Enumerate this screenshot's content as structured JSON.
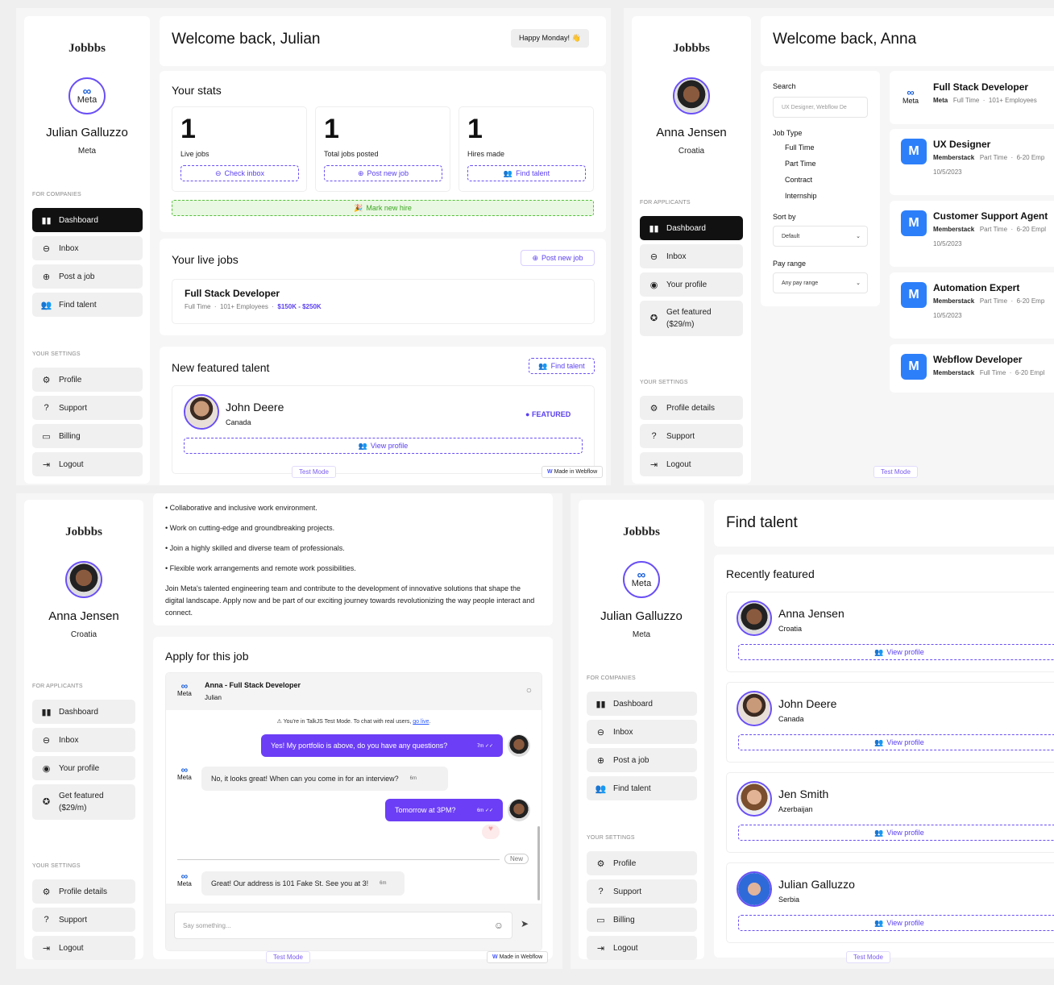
{
  "brand": "Jobbbs",
  "common": {
    "test_mode": "Test Mode",
    "made_in_webflow": "Made in Webflow",
    "for_companies": "FOR COMPANIES",
    "for_applicants": "FOR APPLICANTS",
    "your_settings": "YOUR SETTINGS",
    "meta_logo_text": "Meta"
  },
  "panel1": {
    "user_name": "Julian Galluzzo",
    "user_company": "Meta",
    "nav": [
      "Dashboard",
      "Inbox",
      "Post a job",
      "Find talent"
    ],
    "settings": [
      "Profile",
      "Support",
      "Billing",
      "Logout"
    ],
    "welcome": "Welcome back, Julian",
    "day_badge": "Happy Monday! 👋",
    "stats_title": "Your stats",
    "stats": [
      {
        "value": "1",
        "label": "Live jobs",
        "action": "Check inbox"
      },
      {
        "value": "1",
        "label": "Total jobs posted",
        "action": "Post new job"
      },
      {
        "value": "1",
        "label": "Hires made",
        "action": "Find talent"
      }
    ],
    "mark_hire": "Mark new hire",
    "live_jobs_title": "Your live jobs",
    "post_new_job": "Post new job",
    "job": {
      "title": "Full Stack Developer",
      "type": "Full Time",
      "size": "101+ Employees",
      "salary": "$150K - $250K"
    },
    "featured_title": "New featured talent",
    "find_talent": "Find talent",
    "talent": {
      "name": "John Deere",
      "location": "Canada",
      "badge": "FEATURED",
      "view": "View profile"
    }
  },
  "panel2": {
    "user_name": "Anna Jensen",
    "user_country": "Croatia",
    "nav": [
      "Dashboard",
      "Inbox",
      "Your profile"
    ],
    "get_featured": [
      "Get featured",
      "($29/m)"
    ],
    "settings": [
      "Profile details",
      "Support",
      "Logout"
    ],
    "welcome": "Welcome back, Anna",
    "filters": {
      "search_label": "Search",
      "search_placeholder": "UX Designer, Webflow De",
      "job_type_label": "Job Type",
      "job_types": [
        "Full Time",
        "Part Time",
        "Contract",
        "Internship"
      ],
      "sort_label": "Sort by",
      "sort_value": "Default",
      "pay_label": "Pay range",
      "pay_value": "Any pay range"
    },
    "jobs": [
      {
        "title": "Full Stack Developer",
        "company": "Meta",
        "type": "Full Time",
        "size": "101+ Employees",
        "date": ""
      },
      {
        "title": "UX Designer",
        "company": "Memberstack",
        "type": "Part Time",
        "size": "6-20 Emp",
        "date": "10/5/2023"
      },
      {
        "title": "Customer Support Agent",
        "company": "Memberstack",
        "type": "Part Time",
        "size": "6-20 Empl",
        "date": "10/5/2023"
      },
      {
        "title": "Automation Expert",
        "company": "Memberstack",
        "type": "Part Time",
        "size": "6-20 Emp",
        "date": "10/5/2023"
      },
      {
        "title": "Webflow Developer",
        "company": "Memberstack",
        "type": "Full Time",
        "size": "6-20 Empl",
        "date": ""
      }
    ]
  },
  "panel3": {
    "user_name": "Anna Jensen",
    "user_country": "Croatia",
    "nav": [
      "Dashboard",
      "Inbox",
      "Your profile"
    ],
    "get_featured": [
      "Get featured",
      "($29/m)"
    ],
    "settings": [
      "Profile details",
      "Support",
      "Logout"
    ],
    "bullets": [
      "• Collaborative and inclusive work environment.",
      "• Work on cutting-edge and groundbreaking projects.",
      "• Join a highly skilled and diverse team of professionals.",
      "• Flexible work arrangements and remote work possibilities."
    ],
    "paragraph": "Join Meta's talented engineering team and contribute to the development of innovative solutions that shape the digital landscape. Apply now and be part of our exciting journey towards revolutionizing the way people interact and connect.",
    "apply_title": "Apply for this job",
    "chat": {
      "header_title": "Anna - Full Stack Developer",
      "header_sub": "Julian",
      "notice": "You're in TalkJS Test Mode. To chat with real users,",
      "notice_link": "go live",
      "messages": [
        {
          "text": "Yes! My portfolio is above, do you have any questions?",
          "time": "7m ✓✓"
        },
        {
          "text": "No, it looks great! When can you come in for an interview?",
          "time": "6m"
        },
        {
          "text": "Tomorrow at 3PM?",
          "time": "6m ✓✓"
        },
        {
          "text": "Great! Our address is 101 Fake St. See you at 3!",
          "time": "6m"
        }
      ],
      "new_label": "New",
      "placeholder": "Say something..."
    }
  },
  "panel4": {
    "user_name": "Julian Galluzzo",
    "user_company": "Meta",
    "nav": [
      "Dashboard",
      "Inbox",
      "Post a job",
      "Find talent"
    ],
    "settings": [
      "Profile",
      "Support",
      "Billing",
      "Logout"
    ],
    "title": "Find talent",
    "recent_title": "Recently featured",
    "talents": [
      {
        "name": "Anna Jensen",
        "location": "Croatia"
      },
      {
        "name": "John Deere",
        "location": "Canada"
      },
      {
        "name": "Jen Smith",
        "location": "Azerbaijan"
      },
      {
        "name": "Julian Galluzzo",
        "location": "Serbia"
      }
    ],
    "view_profile": "View profile"
  },
  "colors": {
    "accent": "#6a4ff5",
    "dark": "#111111",
    "green": "#55c13a",
    "memberstack": "#2d7ff9"
  }
}
